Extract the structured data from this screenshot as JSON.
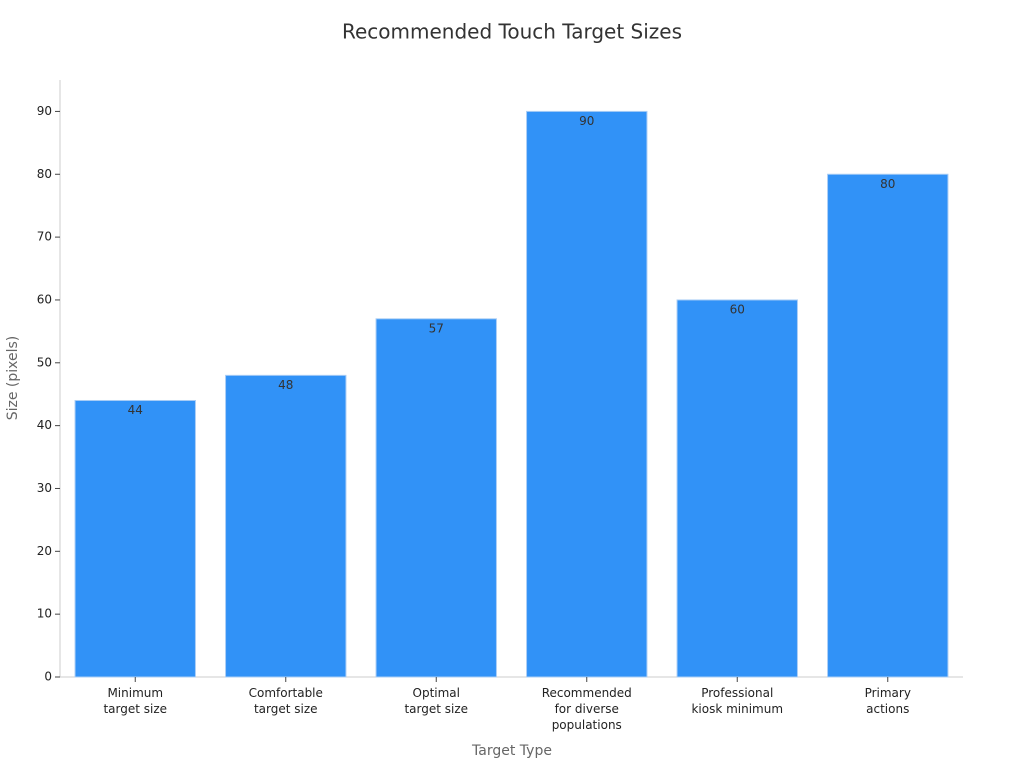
{
  "chart_data": {
    "type": "bar",
    "title": "Recommended Touch Target Sizes",
    "x_label": "Target Type",
    "y_label": "Size (pixels)",
    "categories": [
      "Minimum\ntarget size",
      "Comfortable\ntarget size",
      "Optimal\ntarget size",
      "Recommended\nfor diverse\npopulations",
      "Professional\nkiosk minimum",
      "Primary\nactions"
    ],
    "values": [
      44,
      48,
      57,
      90,
      60,
      80
    ],
    "color": "#3192f7",
    "ylim": [
      0,
      95
    ],
    "yticks": [
      0,
      10,
      20,
      30,
      40,
      50,
      60,
      70,
      80,
      90
    ],
    "grid": false
  }
}
